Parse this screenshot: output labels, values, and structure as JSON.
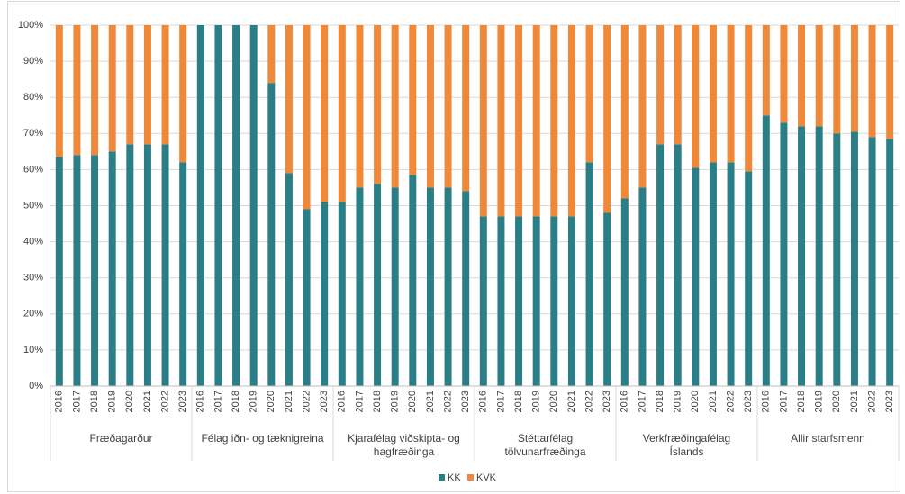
{
  "chart_data": {
    "type": "stacked_bar",
    "groups": [
      "Fræðagarður",
      "Félag iðn- og tæknigreina",
      "Kjarafélag viðskipta- og hagfræðinga",
      "Stéttarfélag tölvunarfræðinga",
      "Verkfræðingafélag Íslands",
      "Allir starfsmenn"
    ],
    "categories": [
      "2016",
      "2017",
      "2018",
      "2019",
      "2020",
      "2021",
      "2022",
      "2023",
      "2016",
      "2017",
      "2018",
      "2019",
      "2020",
      "2021",
      "2022",
      "2023",
      "2016",
      "2017",
      "2018",
      "2019",
      "2020",
      "2021",
      "2022",
      "2023",
      "2016",
      "2017",
      "2018",
      "2019",
      "2020",
      "2021",
      "2022",
      "2023",
      "2016",
      "2017",
      "2018",
      "2019",
      "2020",
      "2021",
      "2022",
      "2023",
      "2016",
      "2017",
      "2018",
      "2019",
      "2020",
      "2021",
      "2022",
      "2023"
    ],
    "series": [
      {
        "name": "KK",
        "color": "#2a7f87",
        "values": [
          63.5,
          64,
          64,
          65,
          67,
          67,
          67,
          62,
          100,
          100,
          100,
          100,
          84,
          59,
          49,
          51,
          51,
          55,
          56,
          55,
          58.5,
          55,
          55,
          54,
          47,
          47,
          47,
          47,
          47,
          47,
          62,
          48,
          52,
          55,
          67,
          67,
          60.5,
          62,
          62,
          59.5,
          75,
          73,
          72,
          72,
          70,
          70.5,
          69,
          68.5
        ]
      },
      {
        "name": "KVK",
        "color": "#f0883a",
        "values": [
          36.5,
          36,
          36,
          35,
          33,
          33,
          33,
          38,
          0,
          0,
          0,
          0,
          16,
          41,
          51,
          49,
          49,
          45,
          44,
          45,
          41.5,
          45,
          45,
          46,
          53,
          53,
          53,
          53,
          53,
          53,
          38,
          52,
          48,
          45,
          33,
          33,
          39.5,
          38,
          38,
          40.5,
          25,
          27,
          28,
          28,
          30,
          29.5,
          31,
          31.5
        ]
      }
    ],
    "ylim": [
      0,
      100
    ],
    "yticks": [
      {
        "value": 0,
        "label": "0%"
      },
      {
        "value": 10,
        "label": "10%"
      },
      {
        "value": 20,
        "label": "20%"
      },
      {
        "value": 30,
        "label": "30%"
      },
      {
        "value": 40,
        "label": "40%"
      },
      {
        "value": 50,
        "label": "50%"
      },
      {
        "value": 60,
        "label": "60%"
      },
      {
        "value": 70,
        "label": "70%"
      },
      {
        "value": 80,
        "label": "80%"
      },
      {
        "value": 90,
        "label": "90%"
      },
      {
        "value": 100,
        "label": "100%"
      }
    ],
    "grid": true
  }
}
